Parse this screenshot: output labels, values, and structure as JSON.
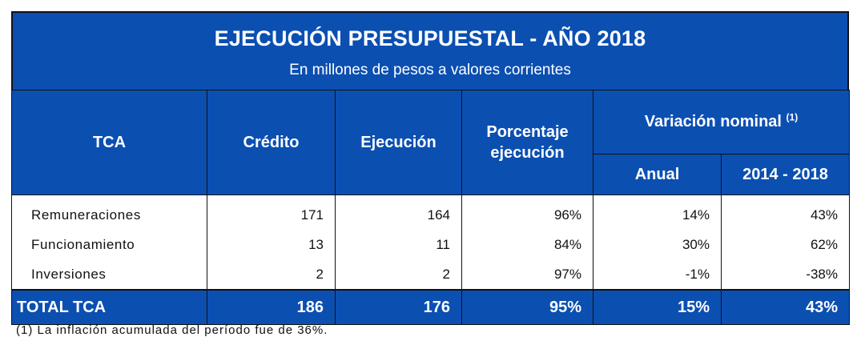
{
  "title": "EJECUCIÓN PRESUPUESTAL - AÑO 2018",
  "subtitle": "En millones de pesos a valores corrientes",
  "headers": {
    "tca": "TCA",
    "credito": "Crédito",
    "ejecucion": "Ejecución",
    "porcentaje_line1": "Porcentaje",
    "porcentaje_line2": "ejecución",
    "variacion": "Variación nominal",
    "variacion_sup": "(1)",
    "anual": "Anual",
    "periodo": "2014 - 2018"
  },
  "rows": [
    {
      "label": "Remuneraciones",
      "credito": "171",
      "ejecucion": "164",
      "porcentaje": "96%",
      "anual": "14%",
      "periodo": "43%"
    },
    {
      "label": "Funcionamiento",
      "credito": "13",
      "ejecucion": "11",
      "porcentaje": "84%",
      "anual": "30%",
      "periodo": "62%"
    },
    {
      "label": "Inversiones",
      "credito": "2",
      "ejecucion": "2",
      "porcentaje": "97%",
      "anual": "-1%",
      "periodo": "-38%"
    }
  ],
  "total": {
    "label": "TOTAL TCA",
    "credito": "186",
    "ejecucion": "176",
    "porcentaje": "95%",
    "anual": "15%",
    "periodo": "43%"
  },
  "footnote": "(1) La inflación acumulada del período fue de 36%.",
  "colors": {
    "header_bg": "#0b4fb1",
    "header_text": "#ffffff"
  }
}
